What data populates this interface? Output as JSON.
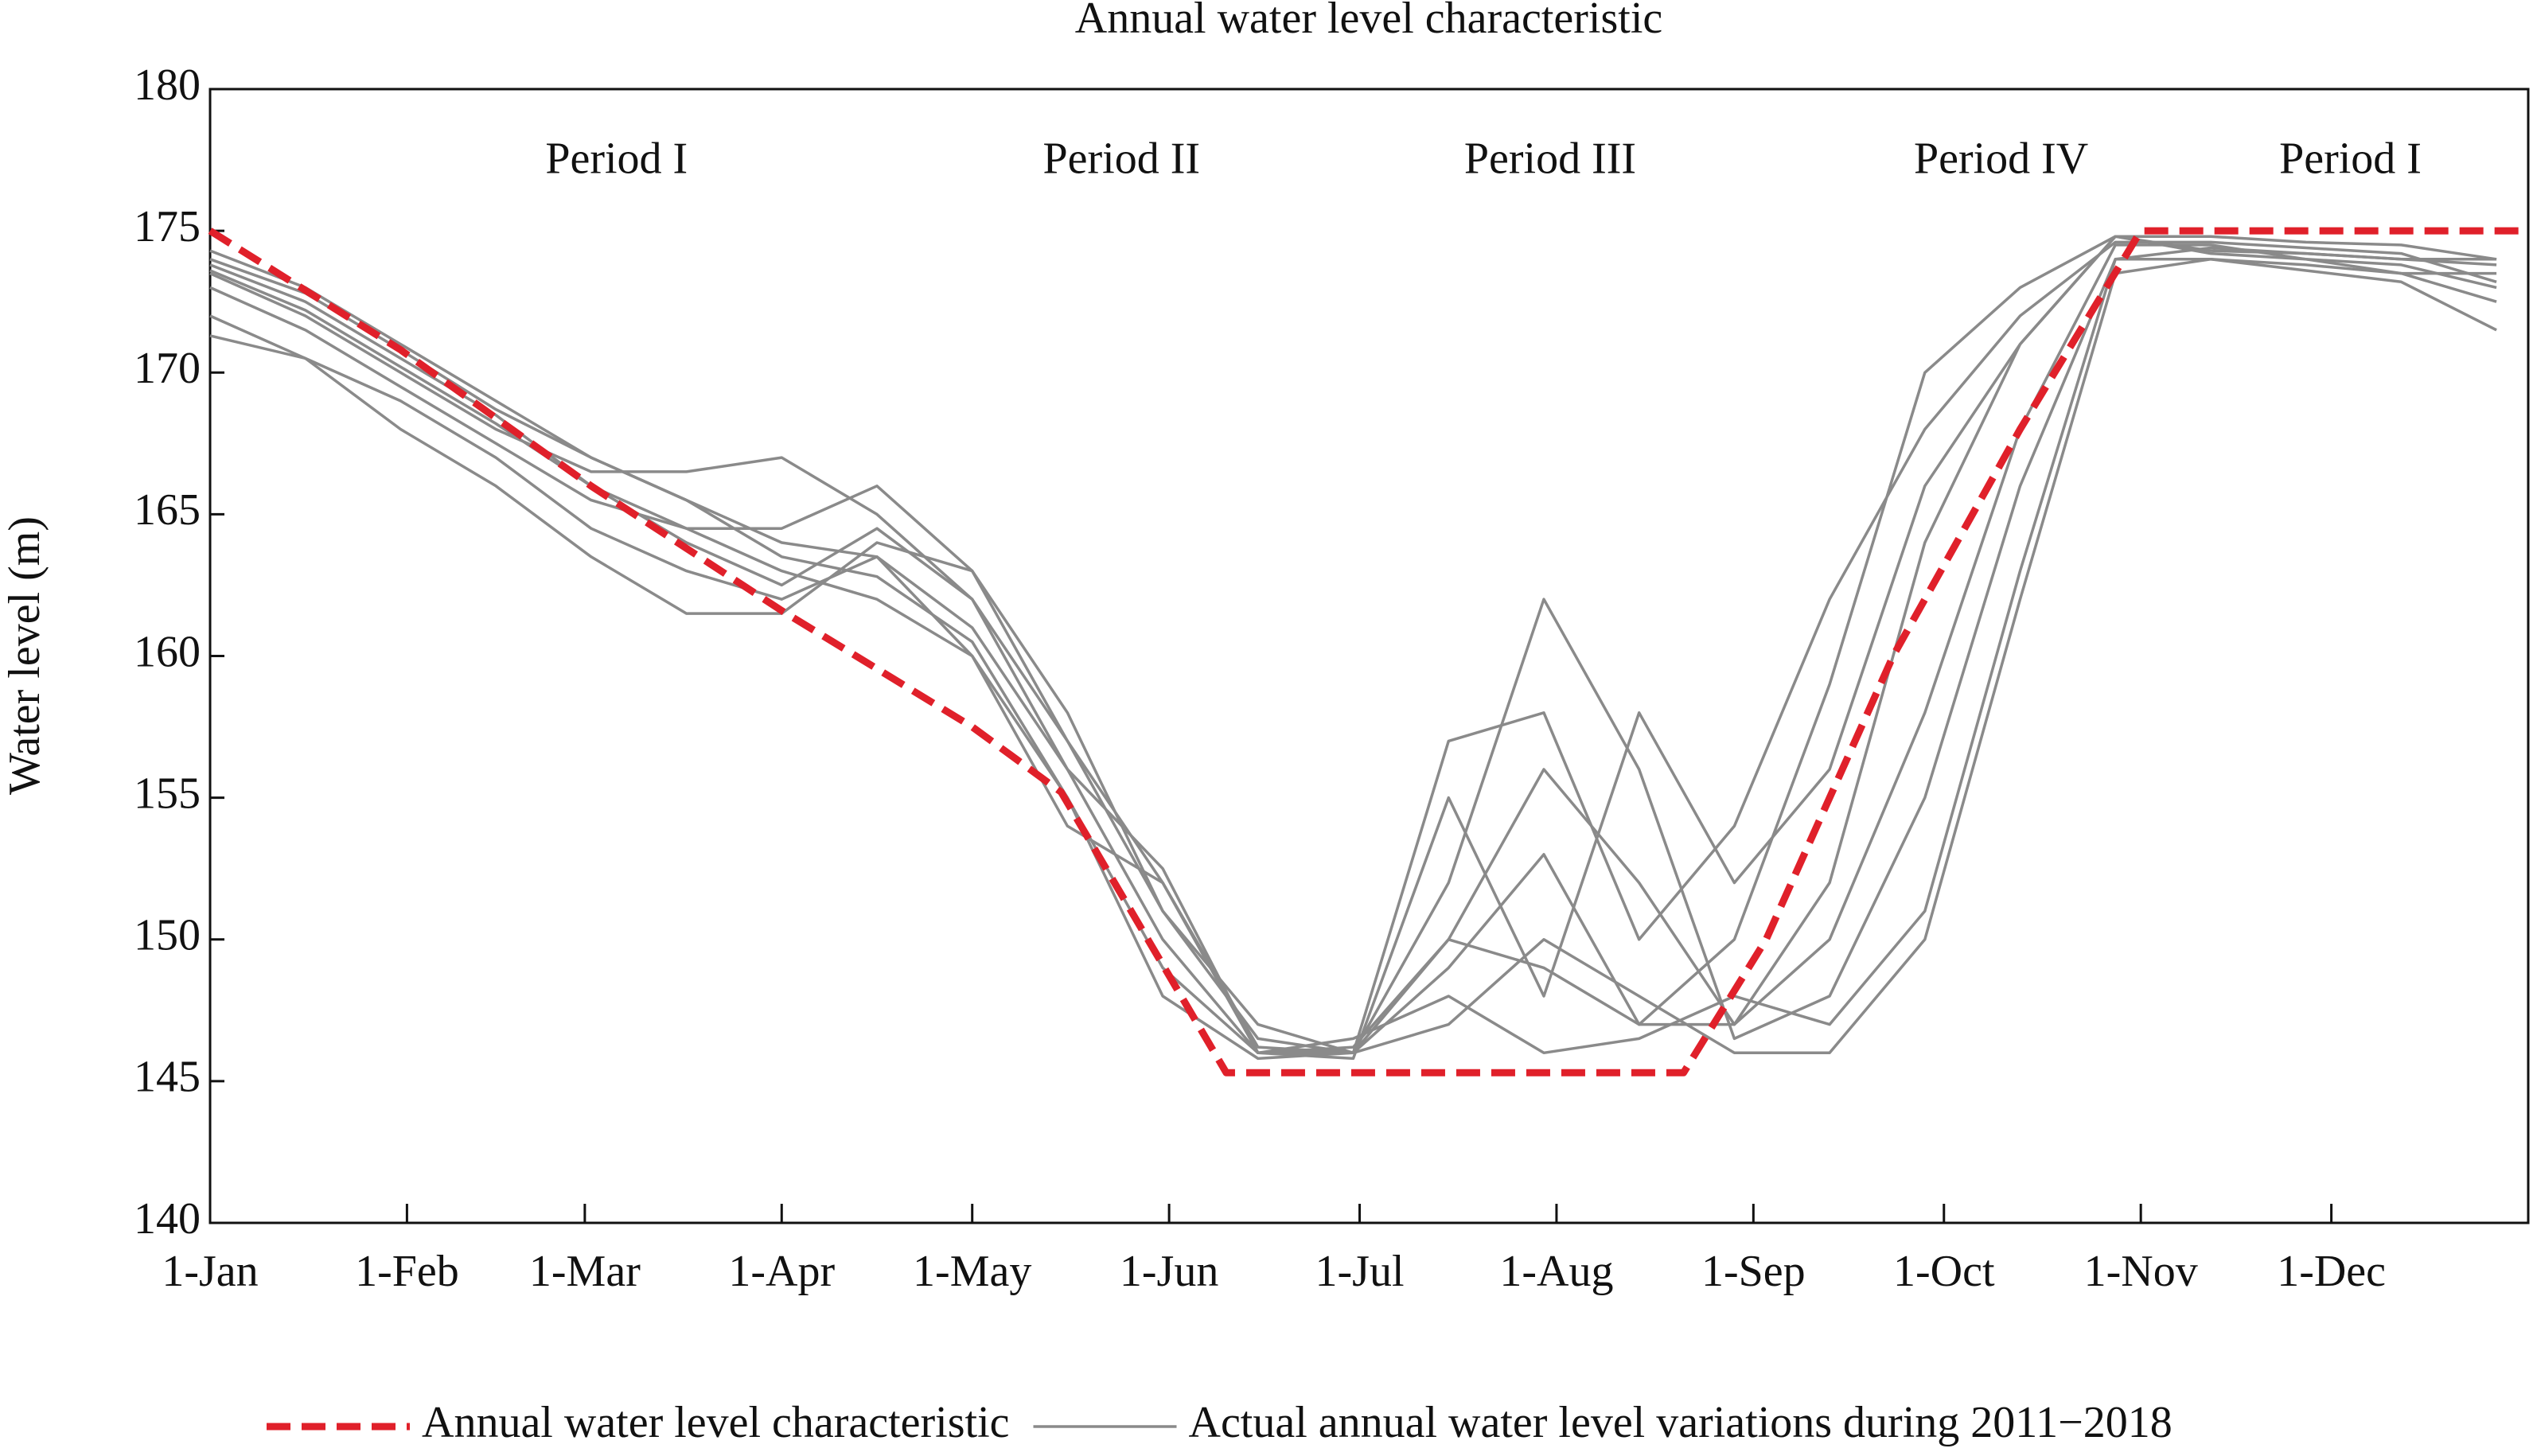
{
  "chart_data": {
    "type": "line",
    "title": "Annual water level characteristic",
    "ylabel": "Water level (m)",
    "xlim": [
      0,
      365
    ],
    "xticks": [
      {
        "value": 0,
        "label": "1-Jan"
      },
      {
        "value": 31,
        "label": "1-Feb"
      },
      {
        "value": 59,
        "label": "1-Mar"
      },
      {
        "value": 90,
        "label": "1-Apr"
      },
      {
        "value": 120,
        "label": "1-May"
      },
      {
        "value": 151,
        "label": "1-Jun"
      },
      {
        "value": 181,
        "label": "1-Jul"
      },
      {
        "value": 212,
        "label": "1-Aug"
      },
      {
        "value": 243,
        "label": "1-Sep"
      },
      {
        "value": 273,
        "label": "1-Oct"
      },
      {
        "value": 304,
        "label": "1-Nov"
      },
      {
        "value": 334,
        "label": "1-Dec"
      }
    ],
    "ylim": [
      140,
      180
    ],
    "yticks": [
      140,
      145,
      150,
      155,
      160,
      165,
      170,
      175,
      180
    ],
    "annotations": [
      {
        "text": "Period I",
        "x": 64,
        "y": 177.4
      },
      {
        "text": "Period II",
        "x": 143.5,
        "y": 177.4
      },
      {
        "text": "Period III",
        "x": 211,
        "y": 177.4
      },
      {
        "text": "Period IV",
        "x": 282,
        "y": 177.4
      },
      {
        "text": "Period I",
        "x": 337,
        "y": 177.4
      }
    ],
    "legend": "bottom",
    "series": [
      {
        "name": "Annual water level characteristic",
        "color": "#e0202a",
        "dashed": true,
        "x": [
          0,
          30,
          60,
          90,
          120,
          134,
          160,
          232,
          245,
          265,
          285,
          304,
          365
        ],
        "values": [
          175,
          170.8,
          166,
          161.6,
          157.5,
          155.2,
          145.3,
          145.3,
          150,
          160,
          168,
          175,
          175
        ]
      },
      {
        "name": "Actual annual water level variations during 2011−2018",
        "color": "#8a8a8a",
        "dashed": false,
        "x": [
          0,
          15,
          30,
          45,
          60,
          75,
          90,
          105,
          120,
          135,
          150,
          165,
          180,
          195,
          210,
          225,
          240,
          255,
          270,
          285,
          300,
          315,
          330,
          345,
          360
        ],
        "values": [
          [
            174.3,
            173,
            171,
            169,
            167,
            165.5,
            164,
            163.5,
            161,
            156,
            150,
            146,
            146,
            150,
            156,
            152,
            147,
            150,
            158,
            168,
            174.5,
            174.5,
            174,
            173.5,
            173.5
          ],
          [
            173.8,
            172.5,
            170.5,
            168.5,
            166,
            164.5,
            163,
            162,
            160,
            155,
            149,
            146,
            145.8,
            155,
            148,
            158,
            152,
            156,
            166,
            171,
            174.8,
            174.3,
            174.2,
            174,
            174
          ],
          [
            173.5,
            172,
            170,
            168,
            166.5,
            166.5,
            167,
            165,
            162,
            157,
            152,
            146.2,
            146,
            157,
            158,
            150,
            154,
            162,
            168,
            172,
            174.6,
            174.6,
            174.4,
            174.2,
            173.2
          ],
          [
            173,
            171.5,
            169.5,
            167.5,
            165.5,
            164.5,
            164.5,
            166,
            163,
            158,
            151,
            146.5,
            146,
            152,
            162,
            156,
            146.5,
            148,
            155,
            166,
            174,
            174,
            173.8,
            173.5,
            172.5
          ],
          [
            172,
            170.5,
            168,
            166,
            163.5,
            161.5,
            161.5,
            164,
            163,
            157,
            151,
            147,
            146,
            147,
            150,
            148,
            146,
            146,
            150,
            162,
            173.5,
            174,
            173.6,
            173.2,
            171.5
          ],
          [
            171.3,
            170.5,
            169,
            167,
            164.5,
            163,
            162,
            163.5,
            160,
            154,
            152,
            146,
            146.2,
            150,
            149,
            147,
            147,
            152,
            164,
            171,
            174.8,
            174.8,
            174.6,
            174.5,
            174
          ],
          [
            174,
            172.8,
            170.8,
            168.7,
            167,
            165.5,
            163.5,
            162.8,
            160.5,
            155,
            148,
            145.8,
            146,
            149,
            153,
            147,
            150,
            159,
            170,
            173,
            174.8,
            174.2,
            174,
            173.8,
            173
          ],
          [
            173.6,
            172.2,
            170.2,
            168.2,
            166,
            164,
            162.5,
            164.5,
            162,
            156,
            152.5,
            146,
            146.5,
            148,
            146,
            146.5,
            148,
            147,
            151,
            163,
            174,
            174.4,
            174.2,
            174,
            173.8
          ]
        ]
      }
    ]
  }
}
